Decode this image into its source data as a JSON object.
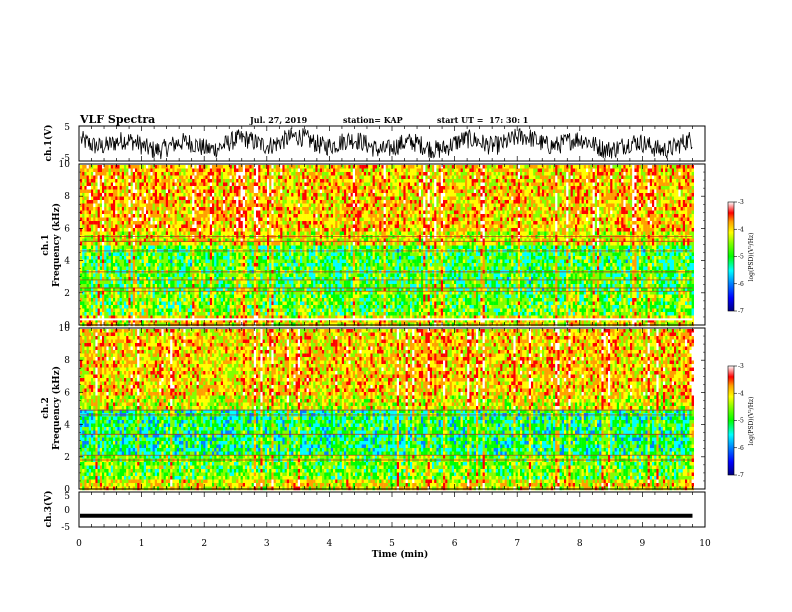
{
  "header": {
    "title": "VLF Spectra",
    "date": "Jul. 27, 2019",
    "station": "station= KAP",
    "start_ut": "start UT =  17: 30: 1"
  },
  "colors": {
    "scale": [
      "#000080",
      "#0000ff",
      "#0080ff",
      "#00ffff",
      "#00ff00",
      "#80ff00",
      "#ffff00",
      "#ffa000",
      "#ff0000",
      "#ffffff"
    ]
  },
  "chart_data": [
    {
      "type": "line",
      "panel": "ch1-waveform",
      "ylabel": "ch.1(V)",
      "ylim": [
        -5,
        5
      ],
      "yticks": [
        "5",
        "-5"
      ],
      "x_range_min": [
        0,
        9.8
      ],
      "description_values": "dense oscillating waveform spanning roughly -4 to 4 V"
    },
    {
      "type": "heatmap",
      "panel": "ch1-spectrogram",
      "ylabel": "ch.1\nFrequency (kHz)",
      "ylim": [
        0,
        10
      ],
      "yticks": [
        "0",
        "2",
        "4",
        "6",
        "8",
        "10"
      ],
      "colorbar": {
        "label": "log(PSD)(V²/Hz)",
        "range": [
          -7,
          -3
        ],
        "ticks": [
          "-3",
          "-4",
          "-5",
          "-6",
          "-7"
        ]
      }
    },
    {
      "type": "heatmap",
      "panel": "ch2-spectrogram",
      "ylabel": "ch.2\nFrequency (kHz)",
      "ylim": [
        0,
        10
      ],
      "yticks": [
        "0",
        "2",
        "4",
        "6",
        "8",
        "10"
      ],
      "colorbar": {
        "label": "log(PSD)(V²/Hz)",
        "range": [
          -7,
          -3
        ],
        "ticks": [
          "-3",
          "-4",
          "-5",
          "-6",
          "-7"
        ]
      }
    },
    {
      "type": "line",
      "panel": "ch3-waveform",
      "ylabel": "ch.3(V)",
      "ylim": [
        -5,
        5
      ],
      "yticks": [
        "5",
        "0",
        "-5"
      ],
      "values_constant": -1.5
    }
  ],
  "x_axis": {
    "label": "Time (min)",
    "range": [
      0,
      10
    ],
    "ticks": [
      "0",
      "1",
      "2",
      "3",
      "4",
      "5",
      "6",
      "7",
      "8",
      "9",
      "10"
    ],
    "data_end": 9.8
  },
  "labels": {
    "ch1_waveform": "ch.1(V)",
    "ch1_spec_a": "ch.1",
    "ch1_spec_b": "Frequency (kHz)",
    "ch2_spec_a": "ch.2",
    "ch2_spec_b": "Frequency (kHz)",
    "ch3_waveform": "ch.3(V)",
    "cb_label": "log(PSD)(V²/Hz)"
  }
}
